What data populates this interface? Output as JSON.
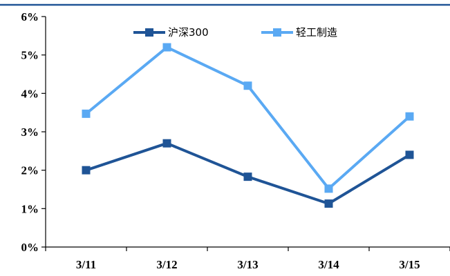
{
  "chart_data": {
    "type": "line",
    "categories": [
      "3/11",
      "3/12",
      "3/13",
      "3/14",
      "3/15"
    ],
    "y_ticks": [
      "0%",
      "1%",
      "2%",
      "3%",
      "4%",
      "5%",
      "6%"
    ],
    "ylim": [
      0,
      6
    ],
    "grid": false,
    "legend_position": "top",
    "series": [
      {
        "name": "沪深300",
        "values": [
          2.0,
          2.7,
          1.83,
          1.13,
          2.4
        ],
        "color": "#1f5496"
      },
      {
        "name": "轻工制造",
        "values": [
          3.47,
          5.2,
          4.2,
          1.52,
          3.4
        ],
        "color": "#5aa9f3"
      }
    ],
    "top_border_color": "#1f5496"
  }
}
